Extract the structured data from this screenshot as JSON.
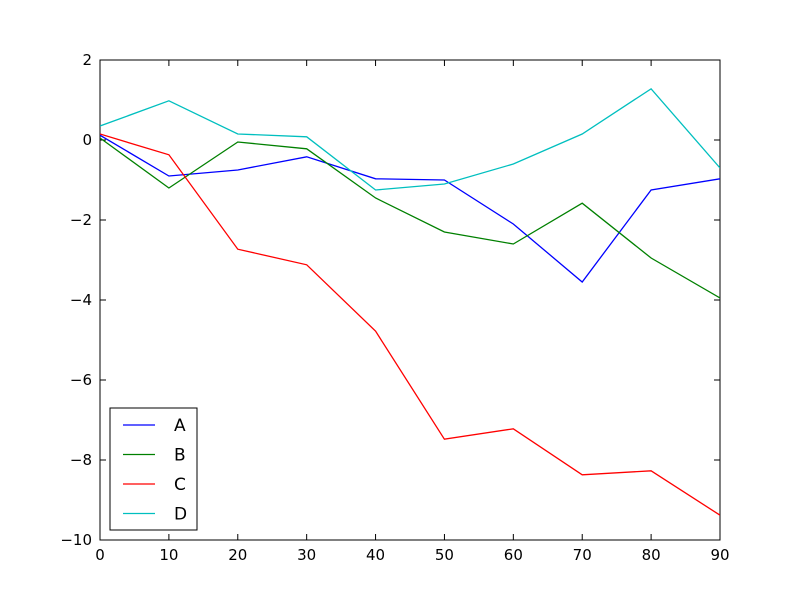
{
  "chart_data": {
    "type": "line",
    "title": "",
    "xlabel": "",
    "ylabel": "",
    "x": [
      0,
      10,
      20,
      30,
      40,
      50,
      60,
      70,
      80,
      90
    ],
    "xlim": [
      0,
      90
    ],
    "ylim": [
      -10,
      2
    ],
    "x_ticks": [
      "0",
      "10",
      "20",
      "30",
      "40",
      "50",
      "60",
      "70",
      "80",
      "90"
    ],
    "y_ticks": [
      "2",
      "0",
      "−2",
      "−4",
      "−6",
      "−8",
      "−10"
    ],
    "y_tick_values": [
      2,
      0,
      -2,
      -4,
      -6,
      -8,
      -10
    ],
    "grid": false,
    "legend_position": "lower-left",
    "series": [
      {
        "name": "A",
        "color": "#0000ff",
        "values": [
          0.12,
          -0.9,
          -0.75,
          -0.42,
          -0.97,
          -1.0,
          -2.1,
          -3.55,
          -1.25,
          -0.97
        ]
      },
      {
        "name": "B",
        "color": "#008000",
        "values": [
          0.05,
          -1.2,
          -0.05,
          -0.22,
          -1.45,
          -2.3,
          -2.6,
          -1.58,
          -2.95,
          -3.95
        ]
      },
      {
        "name": "C",
        "color": "#ff0000",
        "values": [
          0.15,
          -0.37,
          -2.73,
          -3.12,
          -4.78,
          -7.48,
          -7.22,
          -8.37,
          -8.27,
          -9.38
        ]
      },
      {
        "name": "D",
        "color": "#00bfbf",
        "values": [
          0.35,
          0.98,
          0.15,
          0.08,
          -1.25,
          -1.1,
          -0.6,
          0.15,
          1.28,
          -0.7
        ]
      }
    ]
  }
}
